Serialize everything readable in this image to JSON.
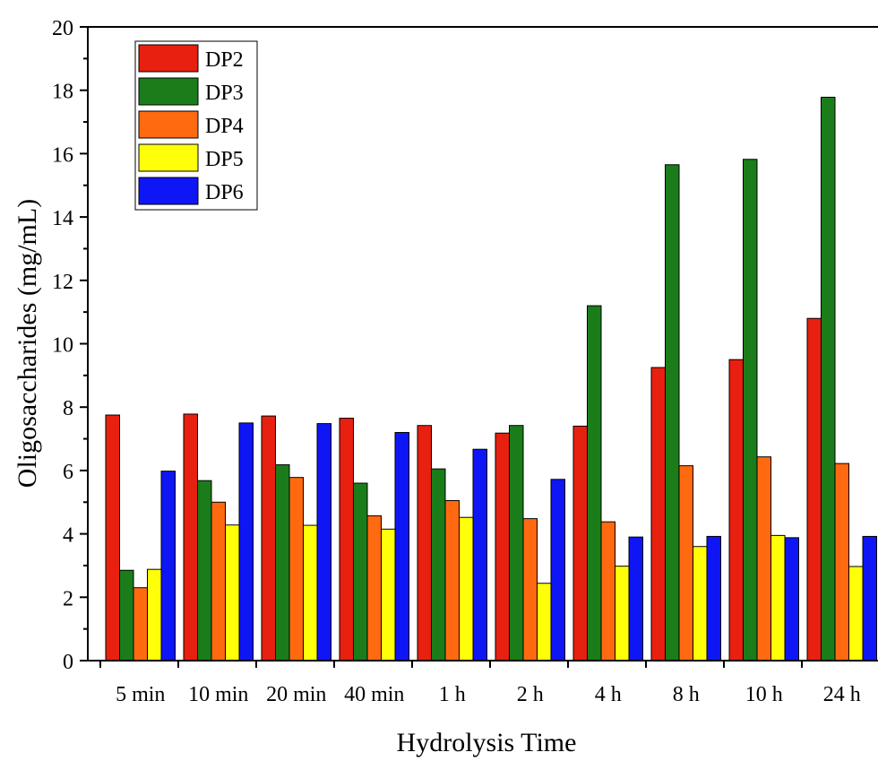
{
  "chart_data": {
    "type": "bar",
    "xlabel": "Hydrolysis Time",
    "ylabel": "Oligosaccharides (mg/mL)",
    "ylim": [
      0,
      20
    ],
    "yticks": [
      "0",
      "2",
      "4",
      "6",
      "8",
      "10",
      "12",
      "14",
      "16",
      "18",
      "20"
    ],
    "grid": false,
    "legend_position": "top-left",
    "categories": [
      "5 min",
      "10 min",
      "20 min",
      "40 min",
      "1 h",
      "2 h",
      "4 h",
      "8 h",
      "10 h",
      "24 h"
    ],
    "series": [
      {
        "name": "DP2",
        "color": "#e8200f",
        "values": [
          7.75,
          7.78,
          7.72,
          7.65,
          7.42,
          7.18,
          7.4,
          9.25,
          9.5,
          10.8
        ]
      },
      {
        "name": "DP3",
        "color": "#1a7d1a",
        "values": [
          2.85,
          5.68,
          6.18,
          5.6,
          6.05,
          7.42,
          11.2,
          15.65,
          15.82,
          17.78
        ]
      },
      {
        "name": "DP4",
        "color": "#ff6a10",
        "values": [
          2.3,
          5.0,
          5.78,
          4.57,
          5.05,
          4.48,
          4.38,
          6.15,
          6.43,
          6.22
        ]
      },
      {
        "name": "DP5",
        "color": "#ffff0a",
        "values": [
          2.88,
          4.28,
          4.27,
          4.15,
          4.52,
          2.44,
          2.98,
          3.6,
          3.95,
          2.97
        ]
      },
      {
        "name": "DP6",
        "color": "#0f16f5",
        "values": [
          5.98,
          7.5,
          7.48,
          7.2,
          6.67,
          5.72,
          3.9,
          3.92,
          3.88,
          3.92
        ]
      }
    ]
  }
}
